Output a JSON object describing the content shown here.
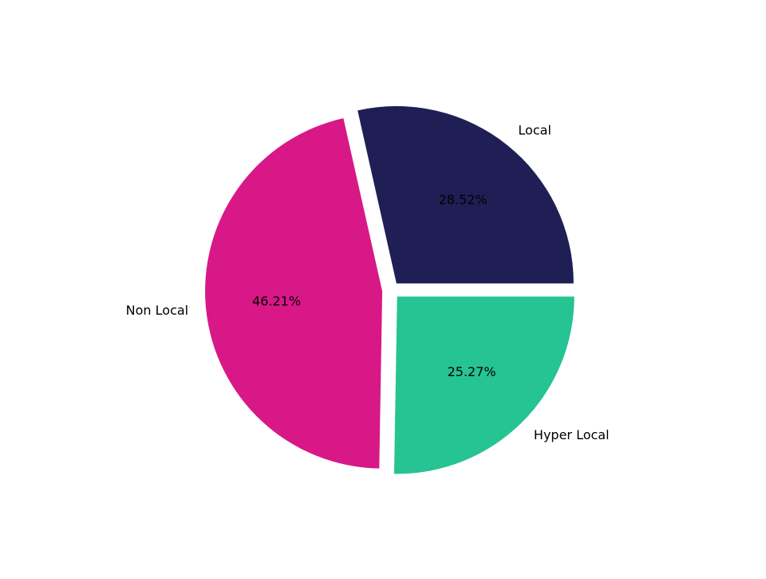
{
  "chart_data": {
    "type": "pie",
    "title": "",
    "categories": [
      "Local",
      "Non Local",
      "Hyper Local"
    ],
    "values": [
      28.52,
      46.21,
      25.27
    ],
    "labels": [
      "28.52%",
      "46.21%",
      "25.27%"
    ],
    "colors": [
      "#1f1f55",
      "#d81886",
      "#25c492"
    ],
    "start_angle_deg": 0,
    "direction": "counterclockwise",
    "exploded": true
  }
}
